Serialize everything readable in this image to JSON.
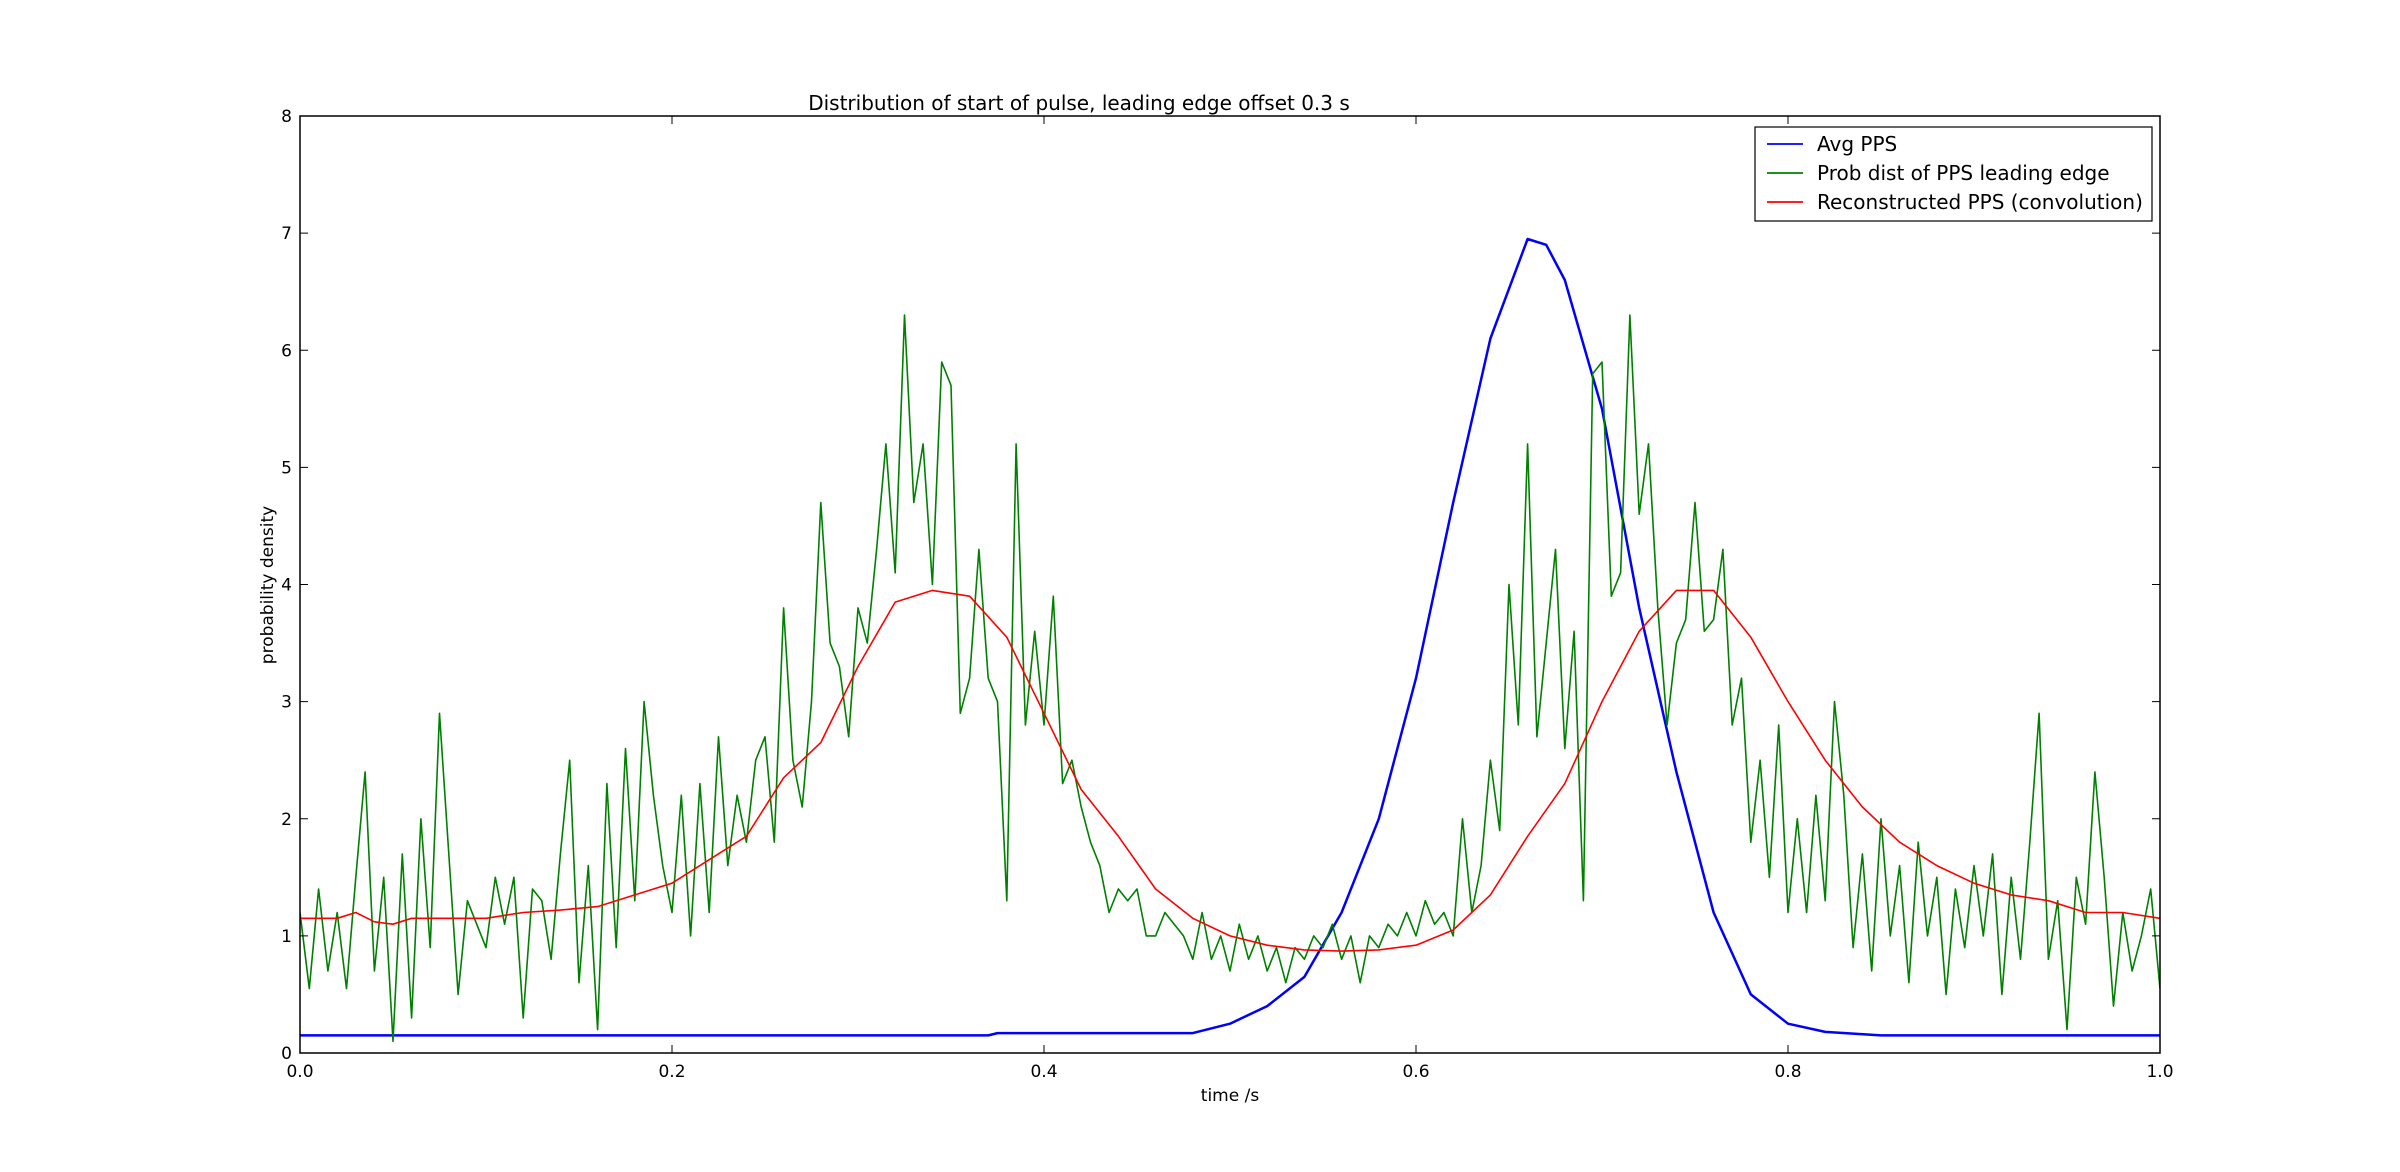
{
  "chart_data": {
    "type": "line",
    "title": "Distribution of start of pulse, leading edge offset 0.3 s",
    "xlabel": "time /s",
    "ylabel": "probability density",
    "xlim": [
      0.0,
      1.0
    ],
    "ylim": [
      0,
      8
    ],
    "x_ticks": [
      "0.0",
      "0.2",
      "0.4",
      "0.6",
      "0.8",
      "1.0"
    ],
    "y_ticks": [
      "0",
      "1",
      "2",
      "3",
      "4",
      "5",
      "6",
      "7",
      "8"
    ],
    "grid": false,
    "legend_position": "top-right",
    "series": [
      {
        "name": "Avg PPS",
        "color": "#0000ff",
        "points": [
          [
            0.0,
            0.15
          ],
          [
            0.1,
            0.15
          ],
          [
            0.2,
            0.15
          ],
          [
            0.3,
            0.15
          ],
          [
            0.37,
            0.15
          ],
          [
            0.375,
            0.17
          ],
          [
            0.43,
            0.17
          ],
          [
            0.48,
            0.17
          ],
          [
            0.5,
            0.25
          ],
          [
            0.52,
            0.4
          ],
          [
            0.54,
            0.65
          ],
          [
            0.56,
            1.2
          ],
          [
            0.58,
            2.0
          ],
          [
            0.6,
            3.2
          ],
          [
            0.62,
            4.7
          ],
          [
            0.64,
            6.1
          ],
          [
            0.66,
            6.95
          ],
          [
            0.67,
            6.9
          ],
          [
            0.68,
            6.6
          ],
          [
            0.7,
            5.5
          ],
          [
            0.72,
            3.8
          ],
          [
            0.74,
            2.4
          ],
          [
            0.76,
            1.2
          ],
          [
            0.78,
            0.5
          ],
          [
            0.8,
            0.25
          ],
          [
            0.82,
            0.18
          ],
          [
            0.85,
            0.15
          ],
          [
            0.9,
            0.15
          ],
          [
            1.0,
            0.15
          ]
        ]
      },
      {
        "name": "Prob dist of PPS leading edge",
        "color": "#008000",
        "points": [
          [
            0.0,
            1.2
          ],
          [
            0.005,
            0.55
          ],
          [
            0.01,
            1.4
          ],
          [
            0.015,
            0.7
          ],
          [
            0.02,
            1.2
          ],
          [
            0.025,
            0.55
          ],
          [
            0.03,
            1.5
          ],
          [
            0.035,
            2.4
          ],
          [
            0.04,
            0.7
          ],
          [
            0.045,
            1.5
          ],
          [
            0.05,
            0.1
          ],
          [
            0.055,
            1.7
          ],
          [
            0.06,
            0.3
          ],
          [
            0.065,
            2.0
          ],
          [
            0.07,
            0.9
          ],
          [
            0.075,
            2.9
          ],
          [
            0.08,
            1.7
          ],
          [
            0.085,
            0.5
          ],
          [
            0.09,
            1.3
          ],
          [
            0.095,
            1.1
          ],
          [
            0.1,
            0.9
          ],
          [
            0.105,
            1.5
          ],
          [
            0.11,
            1.1
          ],
          [
            0.115,
            1.5
          ],
          [
            0.12,
            0.3
          ],
          [
            0.125,
            1.4
          ],
          [
            0.13,
            1.3
          ],
          [
            0.135,
            0.8
          ],
          [
            0.14,
            1.7
          ],
          [
            0.145,
            2.5
          ],
          [
            0.15,
            0.6
          ],
          [
            0.155,
            1.6
          ],
          [
            0.16,
            0.2
          ],
          [
            0.165,
            2.3
          ],
          [
            0.17,
            0.9
          ],
          [
            0.175,
            2.6
          ],
          [
            0.18,
            1.3
          ],
          [
            0.185,
            3.0
          ],
          [
            0.19,
            2.2
          ],
          [
            0.195,
            1.6
          ],
          [
            0.2,
            1.2
          ],
          [
            0.205,
            2.2
          ],
          [
            0.21,
            1.0
          ],
          [
            0.215,
            2.3
          ],
          [
            0.22,
            1.2
          ],
          [
            0.225,
            2.7
          ],
          [
            0.23,
            1.6
          ],
          [
            0.235,
            2.2
          ],
          [
            0.24,
            1.8
          ],
          [
            0.245,
            2.5
          ],
          [
            0.25,
            2.7
          ],
          [
            0.255,
            1.8
          ],
          [
            0.26,
            3.8
          ],
          [
            0.265,
            2.5
          ],
          [
            0.27,
            2.1
          ],
          [
            0.275,
            3.0
          ],
          [
            0.28,
            4.7
          ],
          [
            0.285,
            3.5
          ],
          [
            0.29,
            3.3
          ],
          [
            0.295,
            2.7
          ],
          [
            0.3,
            3.8
          ],
          [
            0.305,
            3.5
          ],
          [
            0.31,
            4.3
          ],
          [
            0.315,
            5.2
          ],
          [
            0.32,
            4.1
          ],
          [
            0.325,
            6.3
          ],
          [
            0.33,
            4.7
          ],
          [
            0.335,
            5.2
          ],
          [
            0.34,
            4.0
          ],
          [
            0.345,
            5.9
          ],
          [
            0.35,
            5.7
          ],
          [
            0.355,
            2.9
          ],
          [
            0.36,
            3.2
          ],
          [
            0.365,
            4.3
          ],
          [
            0.37,
            3.2
          ],
          [
            0.375,
            3.0
          ],
          [
            0.38,
            1.3
          ],
          [
            0.385,
            5.2
          ],
          [
            0.39,
            2.8
          ],
          [
            0.395,
            3.6
          ],
          [
            0.4,
            2.8
          ],
          [
            0.405,
            3.9
          ],
          [
            0.41,
            2.3
          ],
          [
            0.415,
            2.5
          ],
          [
            0.42,
            2.1
          ],
          [
            0.425,
            1.8
          ],
          [
            0.43,
            1.6
          ],
          [
            0.435,
            1.2
          ],
          [
            0.44,
            1.4
          ],
          [
            0.445,
            1.3
          ],
          [
            0.45,
            1.4
          ],
          [
            0.455,
            1.0
          ],
          [
            0.46,
            1.0
          ],
          [
            0.465,
            1.2
          ],
          [
            0.47,
            1.1
          ],
          [
            0.475,
            1.0
          ],
          [
            0.48,
            0.8
          ],
          [
            0.485,
            1.2
          ],
          [
            0.49,
            0.8
          ],
          [
            0.495,
            1.0
          ],
          [
            0.5,
            0.7
          ],
          [
            0.505,
            1.1
          ],
          [
            0.51,
            0.8
          ],
          [
            0.515,
            1.0
          ],
          [
            0.52,
            0.7
          ],
          [
            0.525,
            0.9
          ],
          [
            0.53,
            0.6
          ],
          [
            0.535,
            0.9
          ],
          [
            0.54,
            0.8
          ],
          [
            0.545,
            1.0
          ],
          [
            0.55,
            0.9
          ],
          [
            0.555,
            1.1
          ],
          [
            0.56,
            0.8
          ],
          [
            0.565,
            1.0
          ],
          [
            0.57,
            0.6
          ],
          [
            0.575,
            1.0
          ],
          [
            0.58,
            0.9
          ],
          [
            0.585,
            1.1
          ],
          [
            0.59,
            1.0
          ],
          [
            0.595,
            1.2
          ],
          [
            0.6,
            1.0
          ],
          [
            0.605,
            1.3
          ],
          [
            0.61,
            1.1
          ],
          [
            0.615,
            1.2
          ],
          [
            0.62,
            1.0
          ],
          [
            0.625,
            2.0
          ],
          [
            0.63,
            1.2
          ],
          [
            0.635,
            1.6
          ],
          [
            0.64,
            2.5
          ],
          [
            0.645,
            1.9
          ],
          [
            0.65,
            4.0
          ],
          [
            0.655,
            2.8
          ],
          [
            0.66,
            5.2
          ],
          [
            0.665,
            2.7
          ],
          [
            0.67,
            3.5
          ],
          [
            0.675,
            4.3
          ],
          [
            0.68,
            2.6
          ],
          [
            0.685,
            3.6
          ],
          [
            0.69,
            1.3
          ],
          [
            0.695,
            5.8
          ],
          [
            0.7,
            5.9
          ],
          [
            0.705,
            3.9
          ],
          [
            0.71,
            4.1
          ],
          [
            0.715,
            6.3
          ],
          [
            0.72,
            4.6
          ],
          [
            0.725,
            5.2
          ],
          [
            0.73,
            3.8
          ],
          [
            0.735,
            2.8
          ],
          [
            0.74,
            3.5
          ],
          [
            0.745,
            3.7
          ],
          [
            0.75,
            4.7
          ],
          [
            0.755,
            3.6
          ],
          [
            0.76,
            3.7
          ],
          [
            0.765,
            4.3
          ],
          [
            0.77,
            2.8
          ],
          [
            0.775,
            3.2
          ],
          [
            0.78,
            1.8
          ],
          [
            0.785,
            2.5
          ],
          [
            0.79,
            1.5
          ],
          [
            0.795,
            2.8
          ],
          [
            0.8,
            1.2
          ],
          [
            0.805,
            2.0
          ],
          [
            0.81,
            1.2
          ],
          [
            0.815,
            2.2
          ],
          [
            0.82,
            1.3
          ],
          [
            0.825,
            3.0
          ],
          [
            0.83,
            2.2
          ],
          [
            0.835,
            0.9
          ],
          [
            0.84,
            1.7
          ],
          [
            0.845,
            0.7
          ],
          [
            0.85,
            2.0
          ],
          [
            0.855,
            1.0
          ],
          [
            0.86,
            1.6
          ],
          [
            0.865,
            0.6
          ],
          [
            0.87,
            1.8
          ],
          [
            0.875,
            1.0
          ],
          [
            0.88,
            1.5
          ],
          [
            0.885,
            0.5
          ],
          [
            0.89,
            1.4
          ],
          [
            0.895,
            0.9
          ],
          [
            0.9,
            1.6
          ],
          [
            0.905,
            1.0
          ],
          [
            0.91,
            1.7
          ],
          [
            0.915,
            0.5
          ],
          [
            0.92,
            1.5
          ],
          [
            0.925,
            0.8
          ],
          [
            0.93,
            1.8
          ],
          [
            0.935,
            2.9
          ],
          [
            0.94,
            0.8
          ],
          [
            0.945,
            1.3
          ],
          [
            0.95,
            0.2
          ],
          [
            0.955,
            1.5
          ],
          [
            0.96,
            1.1
          ],
          [
            0.965,
            2.4
          ],
          [
            0.97,
            1.5
          ],
          [
            0.975,
            0.4
          ],
          [
            0.98,
            1.2
          ],
          [
            0.985,
            0.7
          ],
          [
            0.99,
            1.0
          ],
          [
            0.995,
            1.4
          ],
          [
            1.0,
            0.55
          ]
        ]
      },
      {
        "name": "Reconstructed PPS (convolution)",
        "color": "#ff0000",
        "points": [
          [
            0.0,
            1.15
          ],
          [
            0.02,
            1.15
          ],
          [
            0.03,
            1.2
          ],
          [
            0.04,
            1.12
          ],
          [
            0.05,
            1.1
          ],
          [
            0.06,
            1.15
          ],
          [
            0.08,
            1.15
          ],
          [
            0.1,
            1.15
          ],
          [
            0.12,
            1.2
          ],
          [
            0.14,
            1.22
          ],
          [
            0.16,
            1.25
          ],
          [
            0.18,
            1.35
          ],
          [
            0.2,
            1.45
          ],
          [
            0.22,
            1.65
          ],
          [
            0.24,
            1.85
          ],
          [
            0.26,
            2.35
          ],
          [
            0.28,
            2.65
          ],
          [
            0.3,
            3.3
          ],
          [
            0.32,
            3.85
          ],
          [
            0.34,
            3.95
          ],
          [
            0.36,
            3.9
          ],
          [
            0.38,
            3.55
          ],
          [
            0.4,
            2.9
          ],
          [
            0.42,
            2.25
          ],
          [
            0.44,
            1.85
          ],
          [
            0.46,
            1.4
          ],
          [
            0.48,
            1.15
          ],
          [
            0.5,
            1.0
          ],
          [
            0.52,
            0.92
          ],
          [
            0.54,
            0.88
          ],
          [
            0.56,
            0.87
          ],
          [
            0.58,
            0.88
          ],
          [
            0.6,
            0.92
          ],
          [
            0.62,
            1.05
          ],
          [
            0.64,
            1.35
          ],
          [
            0.66,
            1.85
          ],
          [
            0.68,
            2.3
          ],
          [
            0.7,
            3.0
          ],
          [
            0.72,
            3.6
          ],
          [
            0.74,
            3.95
          ],
          [
            0.76,
            3.95
          ],
          [
            0.78,
            3.55
          ],
          [
            0.8,
            3.0
          ],
          [
            0.82,
            2.5
          ],
          [
            0.84,
            2.1
          ],
          [
            0.86,
            1.8
          ],
          [
            0.88,
            1.6
          ],
          [
            0.9,
            1.45
          ],
          [
            0.92,
            1.35
          ],
          [
            0.94,
            1.3
          ],
          [
            0.96,
            1.2
          ],
          [
            0.98,
            1.2
          ],
          [
            1.0,
            1.15
          ]
        ]
      }
    ]
  }
}
